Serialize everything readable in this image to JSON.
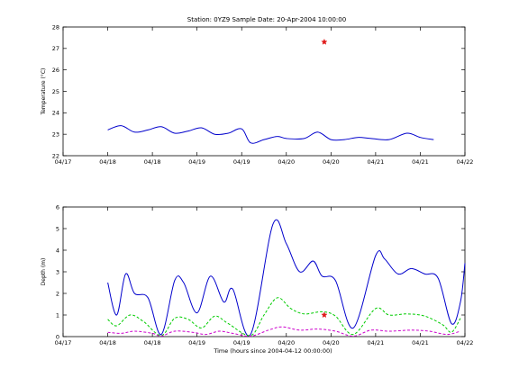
{
  "figure": {
    "title": "Station: 0YZ9  Sample Date: 20-Apr-2004 10:00:00"
  },
  "chart_data": [
    {
      "type": "line",
      "title": "Station: 0YZ9  Sample Date: 20-Apr-2004 10:00:00",
      "ylabel": "Temperature (°C)",
      "xlabel": "",
      "x_ticks": [
        "04/17",
        "04/18",
        "04/18",
        "04/19",
        "04/19",
        "04/20",
        "04/20",
        "04/21",
        "04/21",
        "04/22"
      ],
      "y_ticks": [
        "22",
        "23",
        "24",
        "25",
        "26",
        "27",
        "28"
      ],
      "xlim": [
        0,
        9
      ],
      "ylim": [
        22,
        28
      ],
      "grid": false,
      "series": [
        {
          "color": "#0000cc",
          "style": "solid",
          "points": [
            [
              1.0,
              23.2
            ],
            [
              1.3,
              23.4
            ],
            [
              1.6,
              23.1
            ],
            [
              1.9,
              23.2
            ],
            [
              2.2,
              23.35
            ],
            [
              2.5,
              23.05
            ],
            [
              2.8,
              23.15
            ],
            [
              3.1,
              23.3
            ],
            [
              3.4,
              23.0
            ],
            [
              3.7,
              23.05
            ],
            [
              4.0,
              23.25
            ],
            [
              4.2,
              22.6
            ],
            [
              4.5,
              22.75
            ],
            [
              4.8,
              22.9
            ],
            [
              5.0,
              22.8
            ],
            [
              5.4,
              22.8
            ],
            [
              5.7,
              23.1
            ],
            [
              6.0,
              22.75
            ],
            [
              6.3,
              22.75
            ],
            [
              6.6,
              22.85
            ],
            [
              6.9,
              22.8
            ],
            [
              7.3,
              22.75
            ],
            [
              7.7,
              23.05
            ],
            [
              8.0,
              22.85
            ],
            [
              8.3,
              22.75
            ]
          ]
        }
      ],
      "markers": [
        {
          "x": 5.85,
          "y": 27.3,
          "color": "#e01b1b"
        }
      ]
    },
    {
      "type": "line",
      "title": "",
      "ylabel": "Depth (m)",
      "xlabel": "Time (hours since 2004-04-12 00:00:00)",
      "x_ticks": [
        "04/17",
        "04/18",
        "04/18",
        "04/19",
        "04/19",
        "04/20",
        "04/20",
        "04/21",
        "04/21",
        "04/22"
      ],
      "y_ticks": [
        "0",
        "1",
        "2",
        "3",
        "4",
        "5",
        "6"
      ],
      "xlim": [
        0,
        9
      ],
      "ylim": [
        0,
        6
      ],
      "grid": false,
      "series": [
        {
          "color": "#0000cc",
          "style": "solid",
          "points": [
            [
              1.0,
              2.5
            ],
            [
              1.2,
              1.0
            ],
            [
              1.4,
              2.9
            ],
            [
              1.6,
              2.0
            ],
            [
              1.9,
              1.8
            ],
            [
              2.2,
              0.1
            ],
            [
              2.5,
              2.6
            ],
            [
              2.7,
              2.5
            ],
            [
              3.0,
              1.1
            ],
            [
              3.3,
              2.8
            ],
            [
              3.6,
              1.6
            ],
            [
              3.8,
              2.2
            ],
            [
              4.2,
              0.1
            ],
            [
              4.7,
              5.2
            ],
            [
              5.0,
              4.3
            ],
            [
              5.3,
              3.0
            ],
            [
              5.6,
              3.5
            ],
            [
              5.8,
              2.8
            ],
            [
              6.1,
              2.6
            ],
            [
              6.5,
              0.4
            ],
            [
              7.0,
              3.75
            ],
            [
              7.2,
              3.6
            ],
            [
              7.5,
              2.9
            ],
            [
              7.8,
              3.15
            ],
            [
              8.1,
              2.9
            ],
            [
              8.4,
              2.7
            ],
            [
              8.7,
              0.6
            ],
            [
              8.9,
              1.6
            ],
            [
              9.0,
              3.4
            ]
          ]
        },
        {
          "color": "#00cc00",
          "style": "dashed",
          "points": [
            [
              1.0,
              0.8
            ],
            [
              1.2,
              0.5
            ],
            [
              1.5,
              1.0
            ],
            [
              1.8,
              0.7
            ],
            [
              2.2,
              0.05
            ],
            [
              2.5,
              0.85
            ],
            [
              2.8,
              0.8
            ],
            [
              3.1,
              0.4
            ],
            [
              3.4,
              0.95
            ],
            [
              3.7,
              0.6
            ],
            [
              4.2,
              0.05
            ],
            [
              4.5,
              1.0
            ],
            [
              4.8,
              1.8
            ],
            [
              5.1,
              1.3
            ],
            [
              5.4,
              1.05
            ],
            [
              5.8,
              1.15
            ],
            [
              6.1,
              0.95
            ],
            [
              6.5,
              0.1
            ],
            [
              7.0,
              1.3
            ],
            [
              7.3,
              1.0
            ],
            [
              7.7,
              1.05
            ],
            [
              8.1,
              0.95
            ],
            [
              8.5,
              0.55
            ],
            [
              8.7,
              0.2
            ],
            [
              8.9,
              0.85
            ]
          ]
        },
        {
          "color": "#cc00cc",
          "style": "dashed",
          "points": [
            [
              1.0,
              0.2
            ],
            [
              1.3,
              0.15
            ],
            [
              1.6,
              0.25
            ],
            [
              2.0,
              0.15
            ],
            [
              2.2,
              0.02
            ],
            [
              2.5,
              0.25
            ],
            [
              2.9,
              0.2
            ],
            [
              3.2,
              0.1
            ],
            [
              3.5,
              0.25
            ],
            [
              3.8,
              0.15
            ],
            [
              4.2,
              0.02
            ],
            [
              4.6,
              0.3
            ],
            [
              4.9,
              0.45
            ],
            [
              5.3,
              0.3
            ],
            [
              5.7,
              0.35
            ],
            [
              6.1,
              0.25
            ],
            [
              6.5,
              0.02
            ],
            [
              6.9,
              0.3
            ],
            [
              7.3,
              0.25
            ],
            [
              7.8,
              0.3
            ],
            [
              8.2,
              0.25
            ],
            [
              8.6,
              0.1
            ],
            [
              8.9,
              0.25
            ]
          ]
        }
      ],
      "markers": [
        {
          "x": 5.85,
          "y": 1.0,
          "color": "#e01b1b"
        }
      ]
    }
  ]
}
